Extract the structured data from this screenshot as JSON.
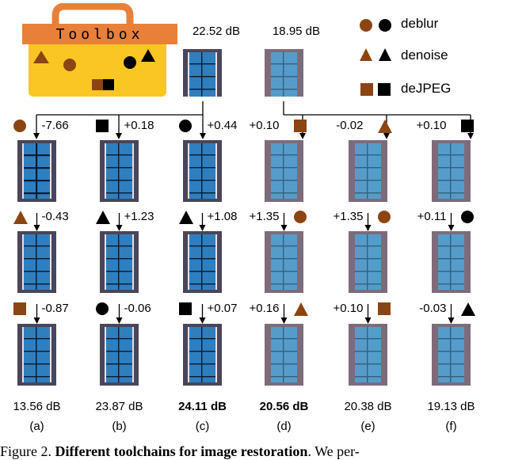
{
  "toolbox": {
    "label": "Toolbox"
  },
  "input_values": {
    "left": "22.52 dB",
    "right": "18.95 dB"
  },
  "legend": {
    "deblur": "deblur",
    "denoise": "denoise",
    "dejpeg": "deJPEG"
  },
  "colors": {
    "brown": "#8B4513",
    "black": "#000000",
    "toolbox_yellow": "#F9C623",
    "toolbox_orange": "#E8803A"
  },
  "columns": [
    {
      "id": "a",
      "label": "(a)",
      "final": "13.56 dB",
      "final_bold": false,
      "steps": [
        {
          "tool": "deblur",
          "color": "brown",
          "delta": "-7.66"
        },
        {
          "tool": "denoise",
          "color": "brown",
          "delta": "-0.43"
        },
        {
          "tool": "dejpeg",
          "color": "brown",
          "delta": "-0.87"
        }
      ]
    },
    {
      "id": "b",
      "label": "(b)",
      "final": "23.87 dB",
      "final_bold": false,
      "steps": [
        {
          "tool": "dejpeg",
          "color": "black",
          "delta": "+0.18"
        },
        {
          "tool": "denoise",
          "color": "black",
          "delta": "+1.23"
        },
        {
          "tool": "deblur",
          "color": "black",
          "delta": "-0.06"
        }
      ]
    },
    {
      "id": "c",
      "label": "(c)",
      "final": "24.11 dB",
      "final_bold": true,
      "steps": [
        {
          "tool": "deblur",
          "color": "black",
          "delta": "+0.44"
        },
        {
          "tool": "denoise",
          "color": "black",
          "delta": "+1.08"
        },
        {
          "tool": "dejpeg",
          "color": "black",
          "delta": "+0.07"
        }
      ]
    },
    {
      "id": "d",
      "label": "(d)",
      "final": "20.56 dB",
      "final_bold": true,
      "steps": [
        {
          "tool": "dejpeg",
          "color": "brown",
          "delta": "+0.10"
        },
        {
          "tool": "deblur",
          "color": "brown",
          "delta": "+1.35"
        },
        {
          "tool": "denoise",
          "color": "brown",
          "delta": "+0.16"
        }
      ]
    },
    {
      "id": "e",
      "label": "(e)",
      "final": "20.38 dB",
      "final_bold": false,
      "steps": [
        {
          "tool": "denoise",
          "color": "brown",
          "delta": "-0.02"
        },
        {
          "tool": "deblur",
          "color": "brown",
          "delta": "+1.35"
        },
        {
          "tool": "dejpeg",
          "color": "brown",
          "delta": "+0.10"
        }
      ]
    },
    {
      "id": "f",
      "label": "(f)",
      "final": "19.13 dB",
      "final_bold": false,
      "steps": [
        {
          "tool": "dejpeg",
          "color": "black",
          "delta": "+0.10"
        },
        {
          "tool": "deblur",
          "color": "black",
          "delta": "+0.11"
        },
        {
          "tool": "denoise",
          "color": "black",
          "delta": "-0.03"
        }
      ]
    }
  ],
  "caption": {
    "prefix": "Figure 2. ",
    "title": "Different toolchains for image restoration",
    "suffix": ".  We per-"
  }
}
